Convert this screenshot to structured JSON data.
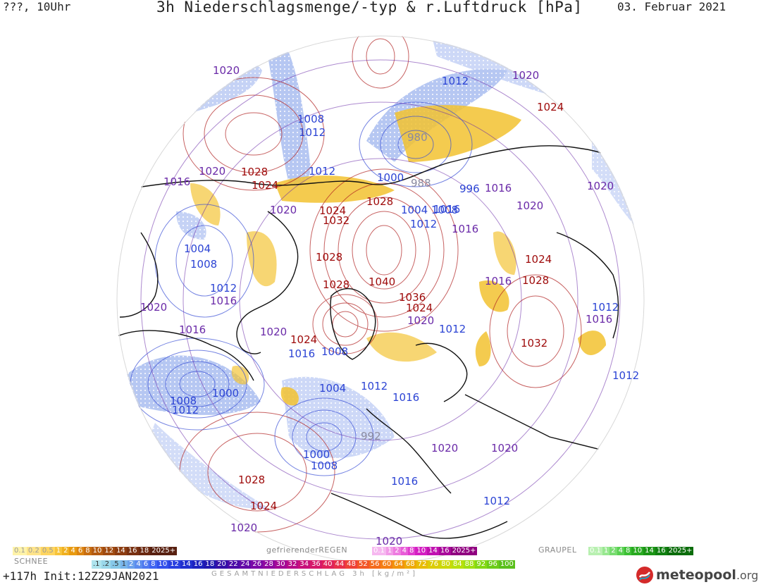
{
  "header": {
    "left": "???, 10Uhr",
    "title": "3h Niederschlagsmenge/-typ & r.Luftdruck [hPa]",
    "date": "03. Februar 2021"
  },
  "map": {
    "pressure_labels": [
      {
        "v": "1020",
        "c": "p"
      },
      {
        "v": "1008",
        "c": "b"
      },
      {
        "v": "1012",
        "c": "b"
      },
      {
        "v": "1012",
        "c": "b"
      },
      {
        "v": "1020",
        "c": "p"
      },
      {
        "v": "1024",
        "c": "r"
      },
      {
        "v": "980",
        "c": "g"
      },
      {
        "v": "1020",
        "c": "p"
      },
      {
        "v": "1028",
        "c": "r"
      },
      {
        "v": "1016",
        "c": "p"
      },
      {
        "v": "1024",
        "c": "r"
      },
      {
        "v": "1012",
        "c": "b"
      },
      {
        "v": "1000",
        "c": "b"
      },
      {
        "v": "988",
        "c": "g"
      },
      {
        "v": "996",
        "c": "b"
      },
      {
        "v": "1016",
        "c": "p"
      },
      {
        "v": "1020",
        "c": "p"
      },
      {
        "v": "1020",
        "c": "p"
      },
      {
        "v": "1016",
        "c": "b"
      },
      {
        "v": "1020",
        "c": "p"
      },
      {
        "v": "1024",
        "c": "r"
      },
      {
        "v": "1028",
        "c": "r"
      },
      {
        "v": "1004",
        "c": "b"
      },
      {
        "v": "1008",
        "c": "b"
      },
      {
        "v": "1032",
        "c": "r"
      },
      {
        "v": "1012",
        "c": "b"
      },
      {
        "v": "1016",
        "c": "p"
      },
      {
        "v": "1004",
        "c": "b"
      },
      {
        "v": "1008",
        "c": "b"
      },
      {
        "v": "1028",
        "c": "r"
      },
      {
        "v": "1024",
        "c": "r"
      },
      {
        "v": "1012",
        "c": "b"
      },
      {
        "v": "1016",
        "c": "p"
      },
      {
        "v": "1028",
        "c": "r"
      },
      {
        "v": "1040",
        "c": "r"
      },
      {
        "v": "1016",
        "c": "p"
      },
      {
        "v": "1028",
        "c": "r"
      },
      {
        "v": "1036",
        "c": "r"
      },
      {
        "v": "1024",
        "c": "r"
      },
      {
        "v": "1020",
        "c": "p"
      },
      {
        "v": "1012",
        "c": "b"
      },
      {
        "v": "1012",
        "c": "b"
      },
      {
        "v": "1016",
        "c": "p"
      },
      {
        "v": "1032",
        "c": "r"
      },
      {
        "v": "1020",
        "c": "p"
      },
      {
        "v": "1016",
        "c": "p"
      },
      {
        "v": "1020",
        "c": "p"
      },
      {
        "v": "1024",
        "c": "r"
      },
      {
        "v": "1016",
        "c": "b"
      },
      {
        "v": "1008",
        "c": "b"
      },
      {
        "v": "1000",
        "c": "b"
      },
      {
        "v": "1008",
        "c": "b"
      },
      {
        "v": "1012",
        "c": "b"
      },
      {
        "v": "1004",
        "c": "b"
      },
      {
        "v": "1012",
        "c": "b"
      },
      {
        "v": "1016",
        "c": "b"
      },
      {
        "v": "992",
        "c": "g"
      },
      {
        "v": "1000",
        "c": "b"
      },
      {
        "v": "1008",
        "c": "b"
      },
      {
        "v": "1016",
        "c": "b"
      },
      {
        "v": "1020",
        "c": "p"
      },
      {
        "v": "1020",
        "c": "p"
      },
      {
        "v": "1012",
        "c": "b"
      },
      {
        "v": "1012",
        "c": "b"
      },
      {
        "v": "1028",
        "c": "r"
      },
      {
        "v": "1024",
        "c": "r"
      },
      {
        "v": "1020",
        "c": "p"
      },
      {
        "v": "1020",
        "c": "p"
      }
    ],
    "colors": {
      "high": "#9e0a0a",
      "low": "#2c44d4",
      "neutral": "#6a2aa8",
      "snow_band": "#8fa7e6",
      "rain_band": "#f2c230"
    }
  },
  "legend": {
    "rain_scale": [
      "0.1",
      "0.2",
      "0.5",
      "1",
      "2",
      "4",
      "6",
      "8",
      "10",
      "12",
      "14",
      "16",
      "18",
      "2025+"
    ],
    "freezing_label": "gefrierenderREGEN",
    "freezing_scale": [
      "0.1",
      "1",
      "2",
      "4",
      "8",
      "10",
      "14",
      "16",
      "2025+"
    ],
    "graupel_label": "GRAUPEL",
    "graupel_scale": [
      "0.1",
      "1",
      "2",
      "4",
      "8",
      "10",
      "14",
      "16",
      "2025+"
    ],
    "snow_label": "SCHNEE",
    "snow_scale": [
      ".1",
      ".2",
      ".5",
      "1",
      "2",
      "4",
      "6",
      "8",
      "10",
      "12",
      "14",
      "16",
      "18",
      "20",
      "22",
      "24",
      "26",
      "28",
      "30",
      "32",
      "34",
      "36",
      "40",
      "44",
      "48",
      "52",
      "56",
      "60",
      "64",
      "68",
      "72",
      "76",
      "80",
      "84",
      "88",
      "92",
      "96",
      "100"
    ]
  },
  "footer": {
    "run": "+117h  Init:12Z29JAN2021",
    "total_label": "GESAMTNIEDERSCHLAG 3h [kg/m²]",
    "logo_main": "meteopool",
    "logo_ext": ".org"
  }
}
